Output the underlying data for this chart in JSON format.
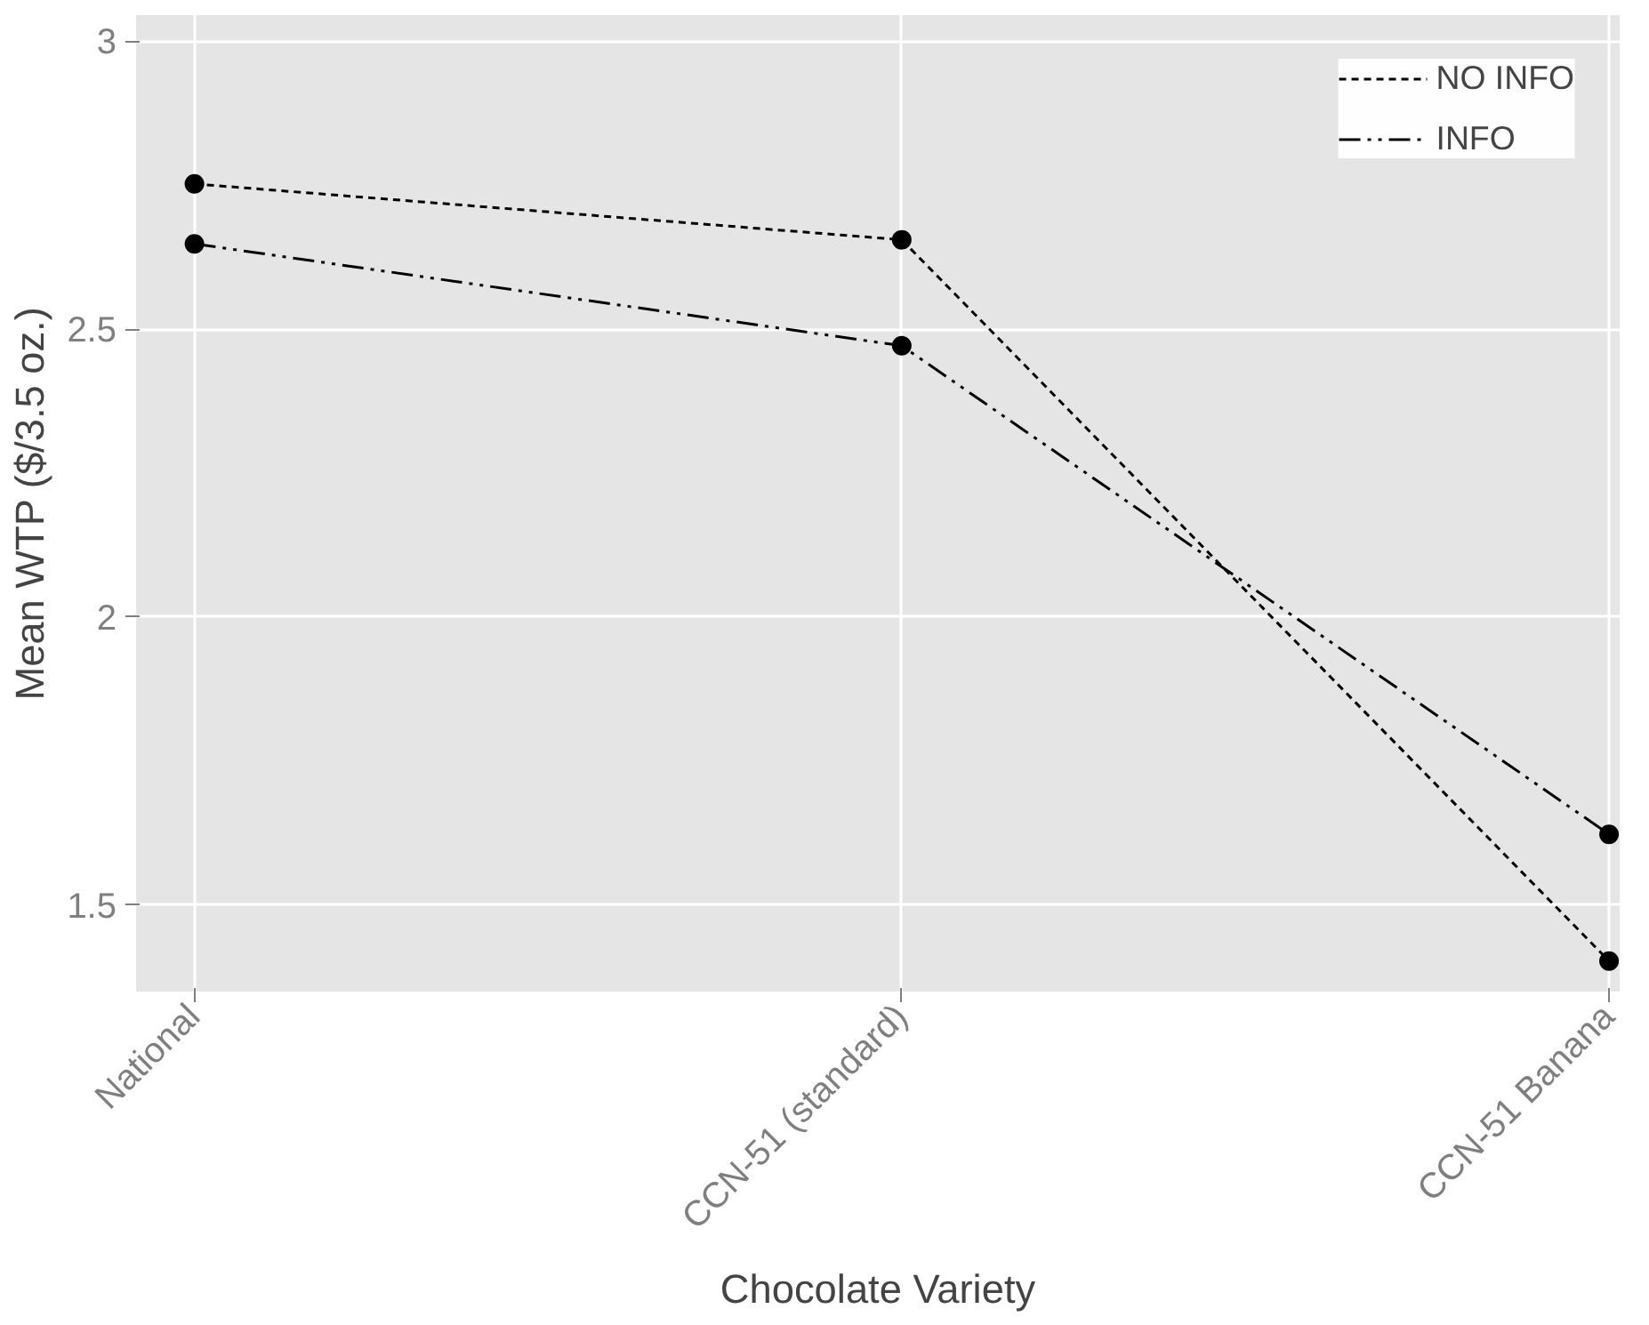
{
  "chart_data": {
    "type": "line",
    "xlabel": "Chocolate Variety",
    "ylabel": "Mean WTP ($/3.5 oz.)",
    "categories": [
      "National",
      "CCN-51 (standard)",
      "CCN-51 Banana"
    ],
    "series": [
      {
        "name": "NO INFO",
        "color": "#000000",
        "values": [
          2.752,
          2.655,
          1.403
        ],
        "line_style": "dashed"
      },
      {
        "name": "INFO",
        "color": "#000000",
        "values": [
          2.648,
          2.471,
          1.623
        ],
        "line_style": "dotted"
      }
    ],
    "ylim": [
      1.35,
      3.045
    ],
    "yticks": [
      1.5,
      2,
      2.5,
      3
    ],
    "grid": true,
    "legend": "top right",
    "marker": "circle"
  }
}
